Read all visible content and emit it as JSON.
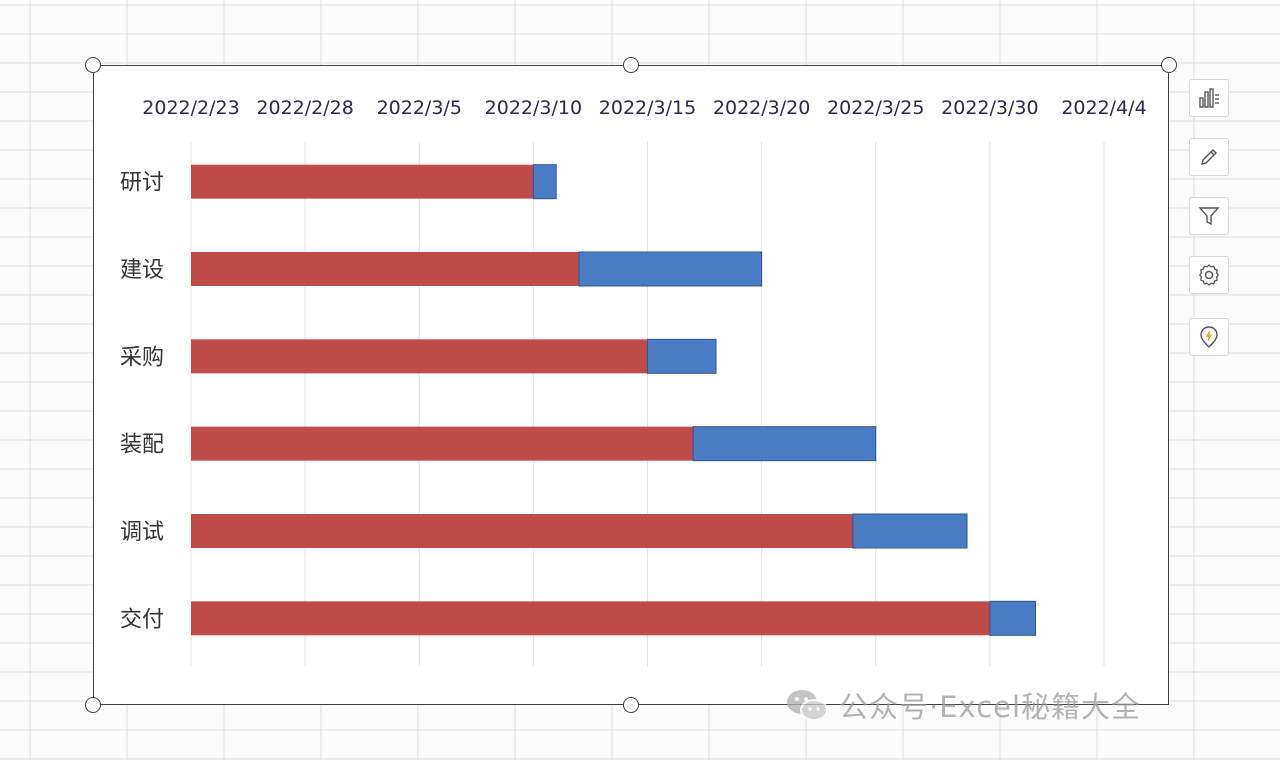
{
  "chart_data": {
    "type": "bar",
    "orientation": "horizontal",
    "stacked": true,
    "x_axis_position": "top",
    "categories": [
      "研讨",
      "建设",
      "采购",
      "装配",
      "调试",
      "交付"
    ],
    "x_ticks": [
      "2022/2/23",
      "2022/2/28",
      "2022/3/5",
      "2022/3/10",
      "2022/3/15",
      "2022/3/20",
      "2022/3/25",
      "2022/3/30",
      "2022/4/4"
    ],
    "xlim": [
      "2022/2/23",
      "2022/4/4"
    ],
    "series": [
      {
        "color": "#be4b48",
        "start": [
          "2022/2/23",
          "2022/2/23",
          "2022/2/23",
          "2022/2/23",
          "2022/2/23",
          "2022/2/23"
        ],
        "end": [
          "2022/3/10",
          "2022/3/12",
          "2022/3/15",
          "2022/3/17",
          "2022/3/24",
          "2022/3/30"
        ]
      },
      {
        "color": "#4a7cc4",
        "start": [
          "2022/3/10",
          "2022/3/12",
          "2022/3/15",
          "2022/3/17",
          "2022/3/24",
          "2022/3/30"
        ],
        "end": [
          "2022/3/11",
          "2022/3/20",
          "2022/3/18",
          "2022/3/25",
          "2022/3/29",
          "2022/4/1"
        ]
      }
    ],
    "grid": true,
    "legend": "none"
  },
  "toolbar": {
    "buttons": [
      {
        "icon": "chart-elements-icon",
        "name": "chart-elements-button"
      },
      {
        "icon": "chart-style-icon",
        "name": "chart-style-button"
      },
      {
        "icon": "chart-filter-icon",
        "name": "chart-filter-button"
      },
      {
        "icon": "settings-gear-icon",
        "name": "chart-settings-button"
      },
      {
        "icon": "ai-idea-icon",
        "name": "chart-ai-button"
      }
    ]
  },
  "watermark": {
    "icon": "wechat-icon",
    "text": "公众号·Excel秘籍大全"
  }
}
